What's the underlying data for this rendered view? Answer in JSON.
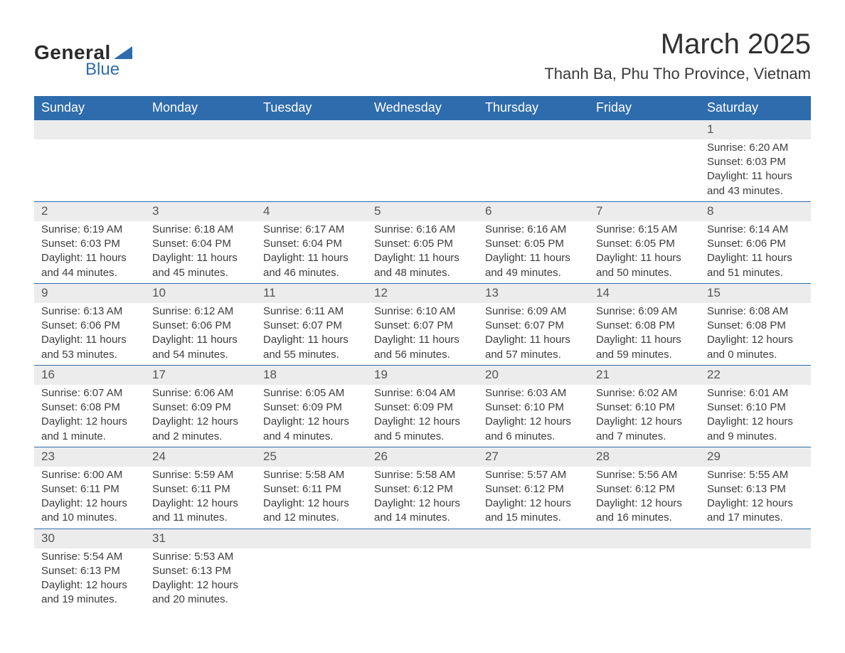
{
  "logo": {
    "word1": "General",
    "word2": "Blue"
  },
  "title": {
    "month": "March 2025",
    "location": "Thanh Ba, Phu Tho Province, Vietnam"
  },
  "colors": {
    "header_bg": "#2e6cad",
    "header_text": "#ffffff",
    "daynum_bg": "#ececec",
    "daynum_text": "#545454",
    "body_text": "#3c3c3c",
    "row_divider": "#2e6cad",
    "page_bg": "#ffffff"
  },
  "typography": {
    "title_fontsize": 40,
    "location_fontsize": 22,
    "weekday_fontsize": 18,
    "daynum_fontsize": 17,
    "detail_fontsize": 15,
    "font_family": "Arial"
  },
  "layout": {
    "columns": 7,
    "rows": 6,
    "start_weekday": "Sunday"
  },
  "weekdays": [
    "Sunday",
    "Monday",
    "Tuesday",
    "Wednesday",
    "Thursday",
    "Friday",
    "Saturday"
  ],
  "weeks": [
    [
      null,
      null,
      null,
      null,
      null,
      null,
      {
        "n": "1",
        "sr": "Sunrise: 6:20 AM",
        "ss": "Sunset: 6:03 PM",
        "d1": "Daylight: 11 hours",
        "d2": "and 43 minutes."
      }
    ],
    [
      {
        "n": "2",
        "sr": "Sunrise: 6:19 AM",
        "ss": "Sunset: 6:03 PM",
        "d1": "Daylight: 11 hours",
        "d2": "and 44 minutes."
      },
      {
        "n": "3",
        "sr": "Sunrise: 6:18 AM",
        "ss": "Sunset: 6:04 PM",
        "d1": "Daylight: 11 hours",
        "d2": "and 45 minutes."
      },
      {
        "n": "4",
        "sr": "Sunrise: 6:17 AM",
        "ss": "Sunset: 6:04 PM",
        "d1": "Daylight: 11 hours",
        "d2": "and 46 minutes."
      },
      {
        "n": "5",
        "sr": "Sunrise: 6:16 AM",
        "ss": "Sunset: 6:05 PM",
        "d1": "Daylight: 11 hours",
        "d2": "and 48 minutes."
      },
      {
        "n": "6",
        "sr": "Sunrise: 6:16 AM",
        "ss": "Sunset: 6:05 PM",
        "d1": "Daylight: 11 hours",
        "d2": "and 49 minutes."
      },
      {
        "n": "7",
        "sr": "Sunrise: 6:15 AM",
        "ss": "Sunset: 6:05 PM",
        "d1": "Daylight: 11 hours",
        "d2": "and 50 minutes."
      },
      {
        "n": "8",
        "sr": "Sunrise: 6:14 AM",
        "ss": "Sunset: 6:06 PM",
        "d1": "Daylight: 11 hours",
        "d2": "and 51 minutes."
      }
    ],
    [
      {
        "n": "9",
        "sr": "Sunrise: 6:13 AM",
        "ss": "Sunset: 6:06 PM",
        "d1": "Daylight: 11 hours",
        "d2": "and 53 minutes."
      },
      {
        "n": "10",
        "sr": "Sunrise: 6:12 AM",
        "ss": "Sunset: 6:06 PM",
        "d1": "Daylight: 11 hours",
        "d2": "and 54 minutes."
      },
      {
        "n": "11",
        "sr": "Sunrise: 6:11 AM",
        "ss": "Sunset: 6:07 PM",
        "d1": "Daylight: 11 hours",
        "d2": "and 55 minutes."
      },
      {
        "n": "12",
        "sr": "Sunrise: 6:10 AM",
        "ss": "Sunset: 6:07 PM",
        "d1": "Daylight: 11 hours",
        "d2": "and 56 minutes."
      },
      {
        "n": "13",
        "sr": "Sunrise: 6:09 AM",
        "ss": "Sunset: 6:07 PM",
        "d1": "Daylight: 11 hours",
        "d2": "and 57 minutes."
      },
      {
        "n": "14",
        "sr": "Sunrise: 6:09 AM",
        "ss": "Sunset: 6:08 PM",
        "d1": "Daylight: 11 hours",
        "d2": "and 59 minutes."
      },
      {
        "n": "15",
        "sr": "Sunrise: 6:08 AM",
        "ss": "Sunset: 6:08 PM",
        "d1": "Daylight: 12 hours",
        "d2": "and 0 minutes."
      }
    ],
    [
      {
        "n": "16",
        "sr": "Sunrise: 6:07 AM",
        "ss": "Sunset: 6:08 PM",
        "d1": "Daylight: 12 hours",
        "d2": "and 1 minute."
      },
      {
        "n": "17",
        "sr": "Sunrise: 6:06 AM",
        "ss": "Sunset: 6:09 PM",
        "d1": "Daylight: 12 hours",
        "d2": "and 2 minutes."
      },
      {
        "n": "18",
        "sr": "Sunrise: 6:05 AM",
        "ss": "Sunset: 6:09 PM",
        "d1": "Daylight: 12 hours",
        "d2": "and 4 minutes."
      },
      {
        "n": "19",
        "sr": "Sunrise: 6:04 AM",
        "ss": "Sunset: 6:09 PM",
        "d1": "Daylight: 12 hours",
        "d2": "and 5 minutes."
      },
      {
        "n": "20",
        "sr": "Sunrise: 6:03 AM",
        "ss": "Sunset: 6:10 PM",
        "d1": "Daylight: 12 hours",
        "d2": "and 6 minutes."
      },
      {
        "n": "21",
        "sr": "Sunrise: 6:02 AM",
        "ss": "Sunset: 6:10 PM",
        "d1": "Daylight: 12 hours",
        "d2": "and 7 minutes."
      },
      {
        "n": "22",
        "sr": "Sunrise: 6:01 AM",
        "ss": "Sunset: 6:10 PM",
        "d1": "Daylight: 12 hours",
        "d2": "and 9 minutes."
      }
    ],
    [
      {
        "n": "23",
        "sr": "Sunrise: 6:00 AM",
        "ss": "Sunset: 6:11 PM",
        "d1": "Daylight: 12 hours",
        "d2": "and 10 minutes."
      },
      {
        "n": "24",
        "sr": "Sunrise: 5:59 AM",
        "ss": "Sunset: 6:11 PM",
        "d1": "Daylight: 12 hours",
        "d2": "and 11 minutes."
      },
      {
        "n": "25",
        "sr": "Sunrise: 5:58 AM",
        "ss": "Sunset: 6:11 PM",
        "d1": "Daylight: 12 hours",
        "d2": "and 12 minutes."
      },
      {
        "n": "26",
        "sr": "Sunrise: 5:58 AM",
        "ss": "Sunset: 6:12 PM",
        "d1": "Daylight: 12 hours",
        "d2": "and 14 minutes."
      },
      {
        "n": "27",
        "sr": "Sunrise: 5:57 AM",
        "ss": "Sunset: 6:12 PM",
        "d1": "Daylight: 12 hours",
        "d2": "and 15 minutes."
      },
      {
        "n": "28",
        "sr": "Sunrise: 5:56 AM",
        "ss": "Sunset: 6:12 PM",
        "d1": "Daylight: 12 hours",
        "d2": "and 16 minutes."
      },
      {
        "n": "29",
        "sr": "Sunrise: 5:55 AM",
        "ss": "Sunset: 6:13 PM",
        "d1": "Daylight: 12 hours",
        "d2": "and 17 minutes."
      }
    ],
    [
      {
        "n": "30",
        "sr": "Sunrise: 5:54 AM",
        "ss": "Sunset: 6:13 PM",
        "d1": "Daylight: 12 hours",
        "d2": "and 19 minutes."
      },
      {
        "n": "31",
        "sr": "Sunrise: 5:53 AM",
        "ss": "Sunset: 6:13 PM",
        "d1": "Daylight: 12 hours",
        "d2": "and 20 minutes."
      },
      null,
      null,
      null,
      null,
      null
    ]
  ]
}
